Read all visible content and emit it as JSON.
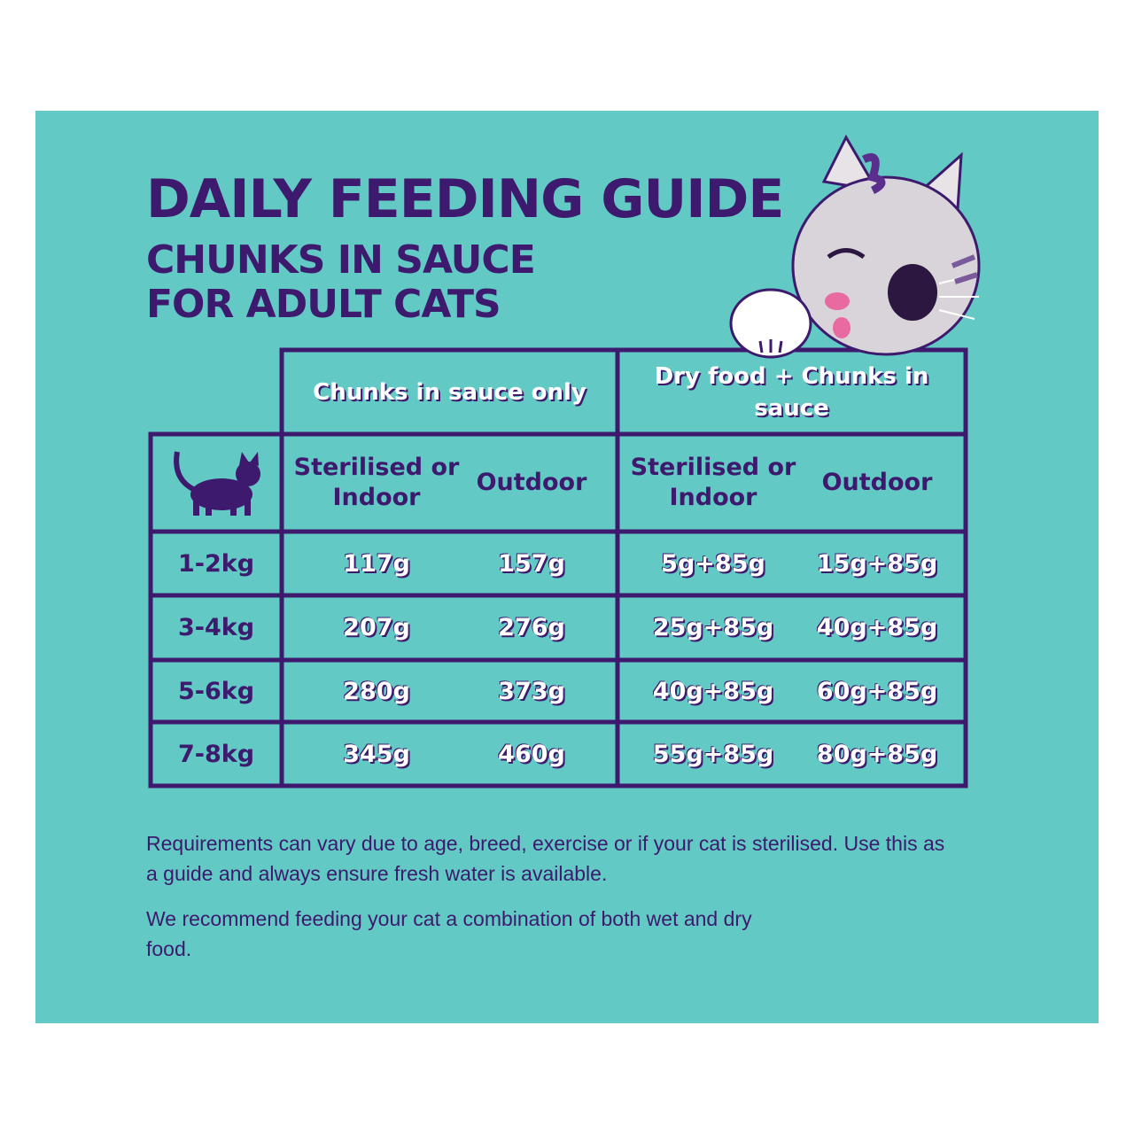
{
  "header": {
    "title": "DAILY FEEDING GUIDE",
    "subtitle_lines": [
      "CHUNKS IN SAUCE",
      "FOR ADULT CATS"
    ]
  },
  "table": {
    "groups": [
      "Chunks in sauce only",
      "Dry food + Chunks in sauce"
    ],
    "columns": [
      "Sterilised or Indoor",
      "Outdoor",
      "Sterilised or Indoor",
      "Outdoor"
    ],
    "rows": [
      [
        "1-2kg",
        "117g",
        "157g",
        "5g+85g",
        "15g+85g"
      ],
      [
        "3-4kg",
        "207g",
        "276g",
        "25g+85g",
        "40g+85g"
      ],
      [
        "5-6kg",
        "280g",
        "373g",
        "40g+85g",
        "60g+85g"
      ],
      [
        "7-8kg",
        "345g",
        "460g",
        "55g+85g",
        "80g+85g"
      ]
    ]
  },
  "notes": [
    "Requirements can vary due to age, breed, exercise or if your cat is sterilised. Use this as a guide and always ensure fresh water is available.",
    "We recommend feeding your cat a combination of both wet and dry food."
  ]
}
